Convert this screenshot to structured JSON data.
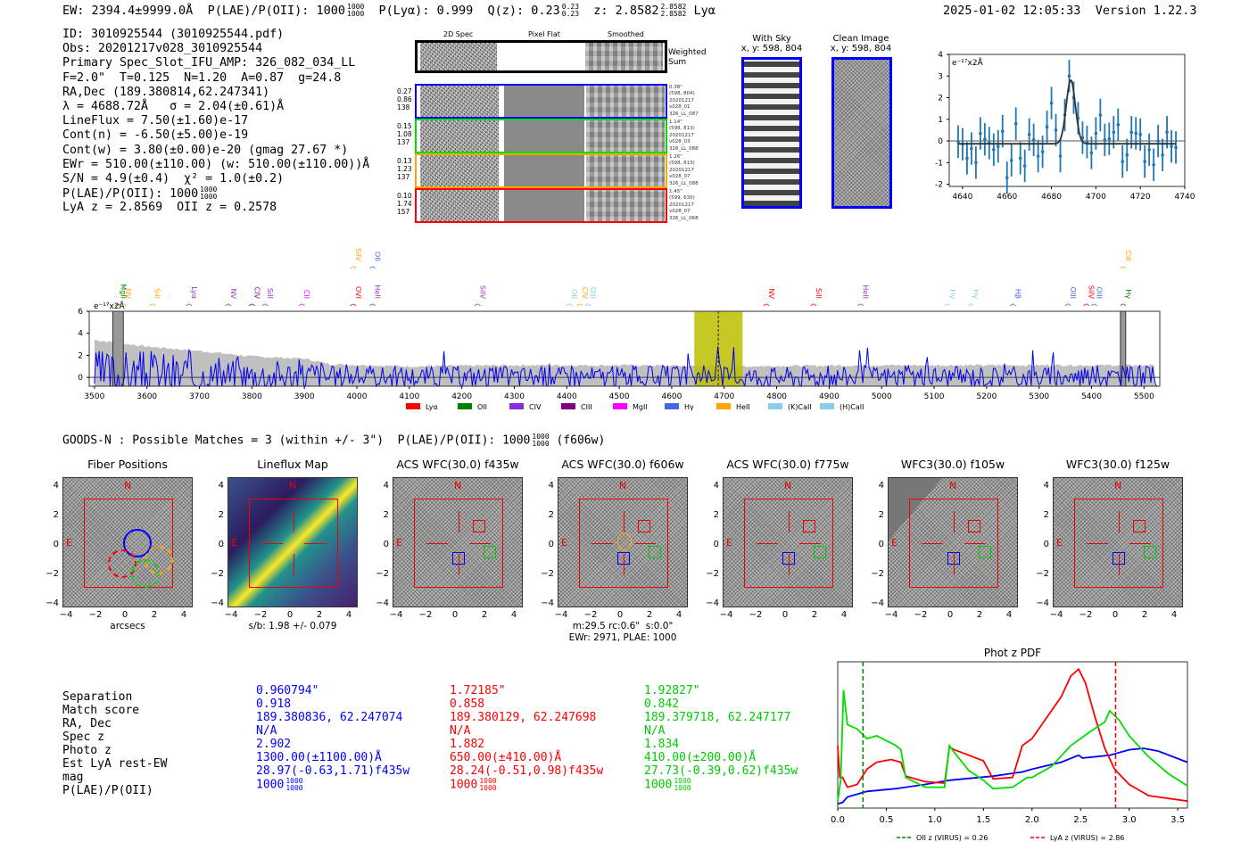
{
  "header": {
    "ew": "EW: 2394.4±9999.0Å",
    "plae_label": "P(LAE)/P(OII): 1000",
    "plae_hi": "1000",
    "plae_lo": "1000",
    "plya": "P(Lyα): 0.999",
    "qz_label": "Q(z): 0.23",
    "qz_hi": "0.23",
    "qz_lo": "0.23",
    "z_label": "z: 2.8582",
    "z_hi": "2.8582",
    "z_lo": "2.8582",
    "z_line": "Lyα",
    "datetime": "2025-01-02 12:05:33",
    "version": "Version 1.22.3"
  },
  "info": {
    "lines": [
      "ID: 3010925544 (3010925544.pdf)",
      "Obs: 20201217v028_3010925544",
      "Primary Spec_Slot_IFU_AMP: 326_082_034_LL",
      "F=2.0\"  T=0.125  N=1.20  A=0.87  g=24.8",
      "RA,Dec (189.380814,62.247341)",
      "λ = 4688.72Å   σ = 2.04(±0.61)Å",
      "LineFlux = 7.50(±1.60)e-17",
      "Cont(n) = -6.50(±5.00)e-19",
      "Cont(w) = 3.80(±0.00)e-20 (gmag 27.67 *)",
      "EWr = 510.00(±110.00) (w: 510.00(±110.00))Å",
      "S/N = 4.9(±0.4)  χ² = 1.0(±0.2)",
      "P(LAE)/P(OII): 1000",
      "LyA z = 2.8569  OII z = 0.2578"
    ],
    "plae_hi": "1000",
    "plae_lo": "1000"
  },
  "cutouts2d": {
    "col_titles": [
      "2D Spec",
      "Pixel Flat",
      "Smoothed"
    ],
    "weighted_label": [
      "Weighted",
      "Sum"
    ],
    "rows": [
      {
        "color": "#0000ff",
        "left": [
          "0.27",
          "0.86",
          "138"
        ],
        "right": [
          "0.38\"",
          "(598, 804)",
          "20201217",
          "v028_01",
          "326_LL_087"
        ]
      },
      {
        "color": "#00dd00",
        "left": [
          "0.15",
          "1.08",
          "137"
        ],
        "right": [
          "1.14\"",
          "(598, 813)",
          "20201217",
          "v028_03",
          "326_LL_088"
        ]
      },
      {
        "color": "#ffa500",
        "left": [
          "0.13",
          "1.23",
          "137"
        ],
        "right": [
          "1.26\"",
          "(598, 813)",
          "20201217",
          "v028_07",
          "326_LL_088"
        ]
      },
      {
        "color": "#ff0000",
        "left": [
          "0.10",
          "1.74",
          "157"
        ],
        "right": [
          "1.45\"",
          "(599, 630)",
          "20201217",
          "v028_07",
          "326_LL_068"
        ]
      }
    ]
  },
  "fiber_images": {
    "with_sky": {
      "title": "With Sky",
      "coords": "x, y: 598, 804"
    },
    "clean": {
      "title": "Clean Image",
      "coords": "x, y: 598, 804"
    }
  },
  "bottom_header": {
    "text": "GOODS-N : Possible Matches = 3 (within +/- 3\")  P(LAE)/P(OII): 1000",
    "hi": "1000",
    "lo": "1000",
    "filter": "(f606w)"
  },
  "image_panels": [
    {
      "title": "Fiber Positions",
      "xlabel": "arcsecs"
    },
    {
      "title": "Lineflux Map",
      "xlabel": "s/b: 1.98 +/- 0.079"
    },
    {
      "title": "ACS WFC(30.0) f435w",
      "xlabel": ""
    },
    {
      "title": "ACS WFC(30.0) f606w",
      "xlabel": "m:29.5 rc:0.6\"  s:0.0\"",
      "xlabel2": "EWr: 2971, PLAE: 1000"
    },
    {
      "title": "ACS WFC(30.0) f775w",
      "xlabel": ""
    },
    {
      "title": "WFC3(30.0) f105w",
      "xlabel": ""
    },
    {
      "title": "WFC3(30.0) f125w",
      "xlabel": ""
    }
  ],
  "panel_ticks": [
    "4",
    "2",
    "0",
    "−2",
    "−4"
  ],
  "panel_xticks": [
    "−4",
    "−2",
    "0",
    "2",
    "4"
  ],
  "compass": {
    "n": "N",
    "e": "E"
  },
  "matches": {
    "labels": [
      "Separation",
      "Match score",
      "RA, Dec",
      "Spec z",
      "Photo z",
      "Est LyA rest-EW",
      "mag",
      "P(LAE)/P(OII)"
    ],
    "columns": [
      {
        "color": "#0000ff",
        "values": [
          "0.960794\"",
          "0.918",
          "189.380836, 62.247074",
          "N/A",
          "2.902",
          "1300.00(±1100.00)Å",
          "28.97(-0.63,1.71)f435w",
          "1000"
        ],
        "hi": "1000",
        "lo": "1000"
      },
      {
        "color": "#ff0000",
        "values": [
          "1.72185\"",
          "0.858",
          "189.380129, 62.247698",
          "N/A",
          "1.882",
          "650.00(±410.00)Å",
          "28.24(-0.51,0.98)f435w",
          "1000"
        ],
        "hi": "1000",
        "lo": "1000"
      },
      {
        "color": "#00cc00",
        "values": [
          "1.92827\"",
          "0.842",
          "189.379718, 62.247177",
          "N/A",
          "1.834",
          "410.00(±200.00)Å",
          "27.73(-0.39,0.62)f435w",
          "1000"
        ],
        "hi": "1000",
        "lo": "1000"
      }
    ]
  },
  "chart_data": [
    {
      "type": "scatter",
      "name": "line-fit",
      "title": "",
      "ylabel": "e⁻¹⁷x2Å",
      "xlim": [
        4634,
        4740
      ],
      "ylim": [
        -2.1,
        4
      ],
      "xticks": [
        4640,
        4660,
        4680,
        4700,
        4720,
        4740
      ],
      "yticks": [
        -2,
        -1,
        0,
        1,
        2,
        3,
        4
      ],
      "x": [
        4638,
        4640,
        4642,
        4644,
        4646,
        4648,
        4650,
        4652,
        4654,
        4656,
        4658,
        4660,
        4662,
        4664,
        4666,
        4668,
        4670,
        4672,
        4674,
        4676,
        4678,
        4680,
        4682,
        4684,
        4686,
        4688,
        4690,
        4692,
        4694,
        4696,
        4698,
        4700,
        4702,
        4704,
        4706,
        4708,
        4710,
        4712,
        4714,
        4716,
        4718,
        4720,
        4722,
        4724,
        4726,
        4728,
        4730,
        4732,
        4734,
        4736
      ],
      "y": [
        -0.03,
        -0.15,
        -0.8,
        -0.35,
        -1.0,
        0.35,
        0.08,
        -0.1,
        -0.4,
        -0.25,
        0.45,
        -1.7,
        -0.9,
        0.8,
        -0.8,
        -1.15,
        0.3,
        0.05,
        -0.7,
        -0.5,
        0.65,
        1.75,
        0.5,
        -0.7,
        1.2,
        3.0,
        2.0,
        1.05,
        0.15,
        -0.05,
        -0.55,
        0.35,
        1.2,
        0.05,
        0.1,
        0.4,
        0.75,
        -0.95,
        -0.65,
        0.4,
        0.35,
        0.3,
        -0.95,
        -0.4,
        -1.1,
        0.0,
        -0.65,
        0.4,
        -0.25,
        -0.3
      ],
      "err": 0.75,
      "fit": {
        "type": "gaussian",
        "center": 4688.7,
        "sigma": 2.04,
        "amplitude": 2.95,
        "baseline": -0.13
      }
    },
    {
      "type": "line",
      "name": "full-spectrum",
      "ylabel": "e⁻¹⁷x2Å",
      "xlim": [
        3490,
        5530
      ],
      "ylim": [
        -0.8,
        6
      ],
      "xticks": [
        3500,
        3600,
        3700,
        3800,
        3900,
        4000,
        4100,
        4200,
        4300,
        4400,
        4500,
        4600,
        4700,
        4800,
        4900,
        5000,
        5100,
        5200,
        5300,
        5400,
        5500
      ],
      "yticks": [
        0,
        2,
        4,
        6
      ],
      "highlight_range": [
        4643,
        4735
      ],
      "line_center": 4688.7,
      "masked_ranges": [
        [
          3535,
          3555
        ],
        [
          5455,
          5465
        ]
      ],
      "noise_envelope": [
        [
          3500,
          3.4
        ],
        [
          3600,
          2.8
        ],
        [
          3700,
          2.4
        ],
        [
          3800,
          1.9
        ],
        [
          3900,
          1.7
        ],
        [
          3950,
          1.2
        ],
        [
          4100,
          1.0
        ],
        [
          4300,
          1.1
        ],
        [
          4500,
          1.1
        ],
        [
          4700,
          1.0
        ],
        [
          5000,
          1.1
        ],
        [
          5300,
          1.1
        ],
        [
          5520,
          1.1
        ]
      ],
      "lines": [
        {
          "label": "MgII",
          "x": 3545,
          "color": "#008000",
          "row": 1
        },
        {
          "label": "NV",
          "x": 3555,
          "color": "#ffa500",
          "row": 1
        },
        {
          "label": "SiII",
          "x": 3610,
          "color": "#ffa500",
          "row": 1
        },
        {
          "label": "Lyα",
          "x": 3680,
          "color": "#9932cc",
          "row": 1
        },
        {
          "label": "NV",
          "x": 3755,
          "color": "#9932cc",
          "row": 1
        },
        {
          "label": "CIV",
          "x": 3800,
          "color": "#8b008b",
          "row": 1
        },
        {
          "label": "SiII",
          "x": 3825,
          "color": "#9932cc",
          "row": 1
        },
        {
          "label": "CII",
          "x": 3895,
          "color": "#ff00ff",
          "row": 1
        },
        {
          "label": "OVI",
          "x": 3993,
          "color": "#ff0000",
          "row": 1
        },
        {
          "label": "SiIV",
          "x": 3993,
          "color": "#ffa500",
          "row": 0
        },
        {
          "label": "HeII",
          "x": 4030,
          "color": "#9932cc",
          "row": 1
        },
        {
          "label": "OII",
          "x": 4030,
          "color": "#4169e1",
          "row": 0
        },
        {
          "label": "SiIV",
          "x": 4230,
          "color": "#9932cc",
          "row": 1
        },
        {
          "label": "OII",
          "x": 4405,
          "color": "#87ceeb",
          "row": 1
        },
        {
          "label": "CIV",
          "x": 4425,
          "color": "#ffa500",
          "row": 1
        },
        {
          "label": "OIII",
          "x": 4440,
          "color": "#87ceeb",
          "row": 1
        },
        {
          "label": "NV",
          "x": 4780,
          "color": "#ff0000",
          "row": 1
        },
        {
          "label": "SiII",
          "x": 4870,
          "color": "#ff0000",
          "row": 1
        },
        {
          "label": "HeII",
          "x": 4960,
          "color": "#9932cc",
          "row": 1
        },
        {
          "label": "Hγ",
          "x": 5125,
          "color": "#87ceeb",
          "row": 1
        },
        {
          "label": "Hγ",
          "x": 5170,
          "color": "#87ceeb",
          "row": 1
        },
        {
          "label": "Hβ",
          "x": 5250,
          "color": "#4169e1",
          "row": 1
        },
        {
          "label": "OIII",
          "x": 5355,
          "color": "#4169e1",
          "row": 1
        },
        {
          "label": "SiIV",
          "x": 5390,
          "color": "#ff0000",
          "row": 1
        },
        {
          "label": "OIII",
          "x": 5405,
          "color": "#4169e1",
          "row": 1
        },
        {
          "label": "CIII",
          "x": 5460,
          "color": "#ffa500",
          "row": 0
        },
        {
          "label": "Hγ",
          "x": 5460,
          "color": "#008000",
          "row": 1
        }
      ],
      "legend": [
        {
          "label": "Lyα",
          "color": "#ff0000"
        },
        {
          "label": "OII",
          "color": "#008000"
        },
        {
          "label": "CIV",
          "color": "#8a2be2"
        },
        {
          "label": "CIII",
          "color": "#800080"
        },
        {
          "label": "MgII",
          "color": "#ff00ff"
        },
        {
          "label": "Hγ",
          "color": "#4169e1"
        },
        {
          "label": "HeII",
          "color": "#ffa500"
        },
        {
          "label": "(K)CaII",
          "color": "#87ceeb"
        },
        {
          "label": "(H)CaII",
          "color": "#87ceeb"
        }
      ],
      "legend_position": "bottom-center"
    },
    {
      "type": "line",
      "name": "phot-z-pdf",
      "title": "Phot z PDF",
      "xlim": [
        0,
        3.6
      ],
      "xticks": [
        0.0,
        0.5,
        1.0,
        1.5,
        2.0,
        2.5,
        3.0,
        3.5
      ],
      "series": [
        {
          "name": "blue",
          "color": "#0000ff",
          "x": [
            0,
            0.05,
            0.1,
            0.3,
            0.6,
            0.9,
            1.15,
            1.6,
            1.9,
            2.0,
            2.3,
            2.48,
            2.52,
            2.8,
            3.0,
            3.15,
            3.3,
            3.6
          ],
          "y": [
            0.03,
            0.04,
            0.08,
            0.12,
            0.14,
            0.17,
            0.2,
            0.23,
            0.26,
            0.28,
            0.33,
            0.38,
            0.36,
            0.38,
            0.42,
            0.43,
            0.41,
            0.33
          ]
        },
        {
          "name": "red",
          "color": "#ff0000",
          "x": [
            0,
            0.02,
            0.05,
            0.1,
            0.2,
            0.3,
            0.4,
            0.55,
            0.65,
            0.7,
            0.9,
            1.1,
            1.15,
            1.2,
            1.5,
            1.6,
            1.8,
            1.9,
            2.0,
            2.1,
            2.2,
            2.3,
            2.4,
            2.48,
            2.55,
            2.65,
            2.75,
            2.85,
            3.0,
            3.2,
            3.6
          ],
          "y": [
            0.45,
            0.22,
            0.22,
            0.15,
            0.17,
            0.28,
            0.33,
            0.35,
            0.33,
            0.23,
            0.19,
            0.18,
            0.44,
            0.42,
            0.34,
            0.21,
            0.22,
            0.45,
            0.5,
            0.6,
            0.7,
            0.8,
            0.95,
            1.0,
            0.9,
            0.65,
            0.43,
            0.28,
            0.17,
            0.09,
            0.05
          ]
        },
        {
          "name": "green",
          "color": "#00dd00",
          "x": [
            0,
            0.03,
            0.06,
            0.1,
            0.2,
            0.3,
            0.4,
            0.6,
            0.65,
            0.7,
            0.9,
            1.1,
            1.15,
            1.2,
            1.35,
            1.5,
            1.6,
            1.8,
            1.95,
            2.0,
            2.2,
            2.4,
            2.6,
            2.75,
            2.8,
            2.9,
            3.0,
            3.2,
            3.4,
            3.6
          ],
          "y": [
            0.05,
            0.2,
            0.85,
            0.6,
            0.57,
            0.5,
            0.52,
            0.45,
            0.42,
            0.22,
            0.15,
            0.15,
            0.45,
            0.4,
            0.27,
            0.2,
            0.14,
            0.15,
            0.22,
            0.22,
            0.3,
            0.45,
            0.55,
            0.62,
            0.7,
            0.63,
            0.52,
            0.37,
            0.25,
            0.16
          ]
        }
      ],
      "vlines": [
        {
          "label": "OII z (VIRUS) = 0.26",
          "x": 0.26,
          "color": "#008000"
        },
        {
          "label": "LyA z (VIRUS) = 2.86",
          "x": 2.86,
          "color": "#ff0000"
        }
      ],
      "legend_position": "bottom-center"
    }
  ]
}
